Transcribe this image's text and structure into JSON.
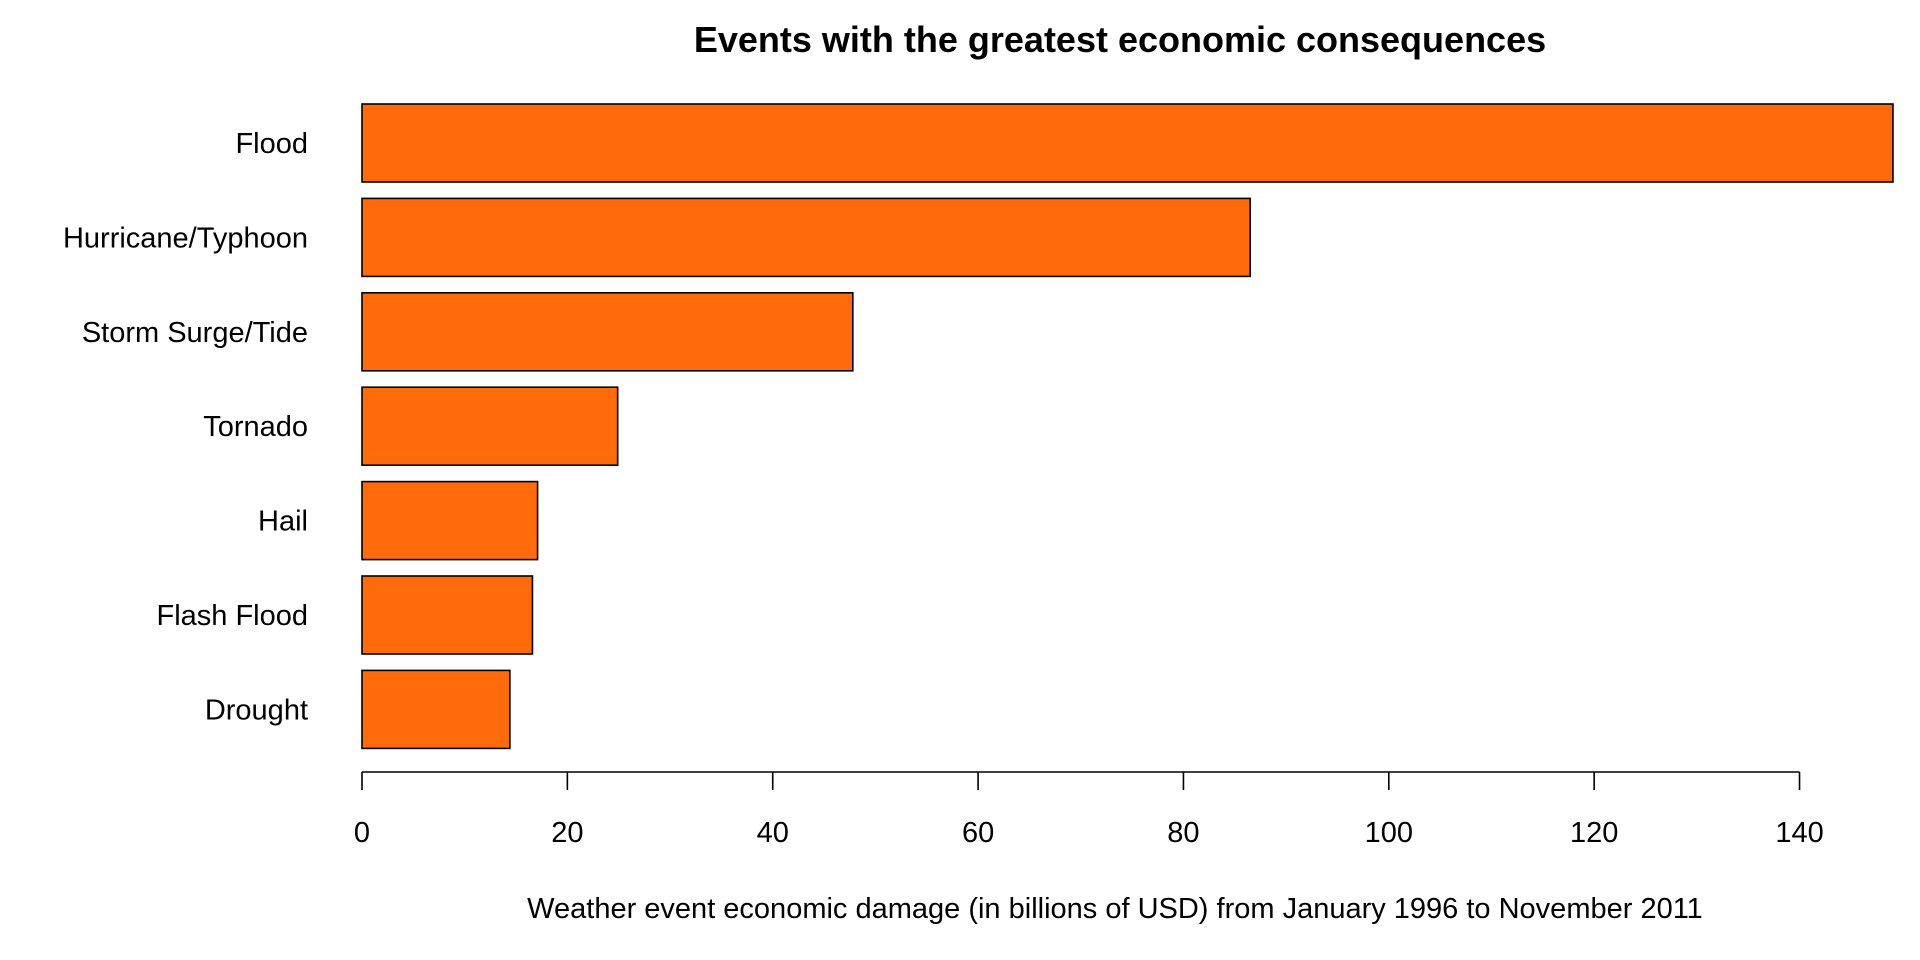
{
  "colors": {
    "bar_fill": "#ff6a0a",
    "bar_stroke": "#000000"
  },
  "chart_data": {
    "type": "bar",
    "orientation": "horizontal",
    "title": "Events with the greatest economic consequences",
    "xlabel": "Weather event economic damage (in billions of USD) from January 1996 to November 2011",
    "ylabel": "",
    "categories": [
      "Flood",
      "Hurricane/Typhoon",
      "Storm Surge/Tide",
      "Tornado",
      "Hail",
      "Flash Flood",
      "Drought"
    ],
    "values": [
      149.1,
      86.5,
      47.8,
      24.9,
      17.1,
      16.6,
      14.4
    ],
    "xlim": [
      0,
      140
    ],
    "xticks": [
      0,
      20,
      40,
      60,
      80,
      100,
      120,
      140
    ],
    "grid": false,
    "legend": "none"
  }
}
